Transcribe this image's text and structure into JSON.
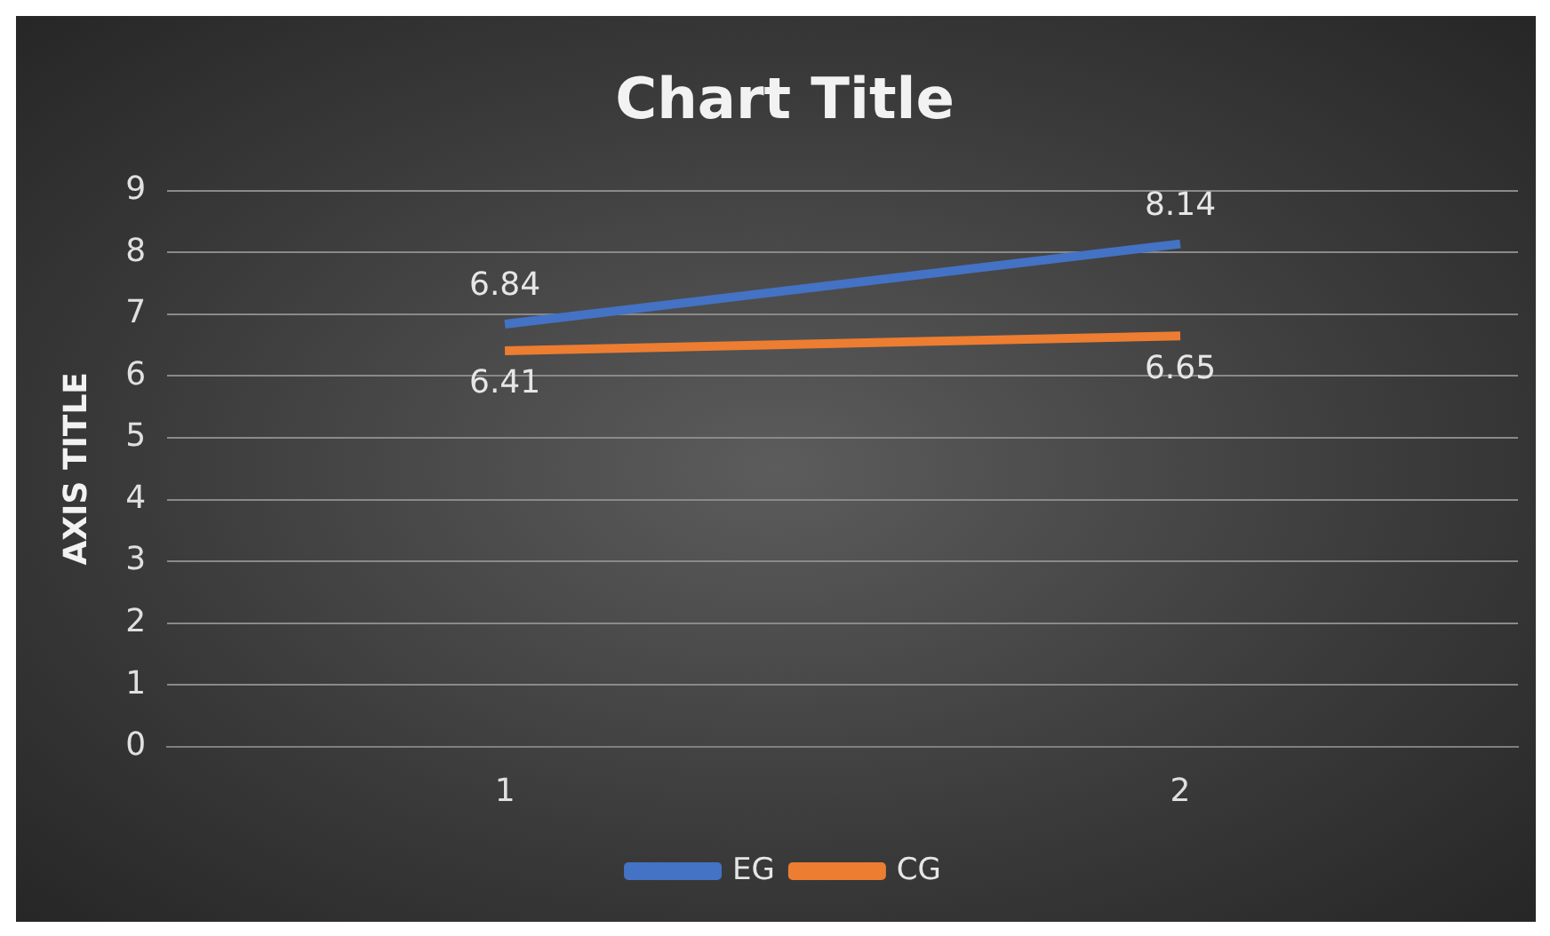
{
  "chart_data": {
    "type": "line",
    "title": "Chart Title",
    "ylabel": "AXIS TITLE",
    "categories": [
      "1",
      "2"
    ],
    "series": [
      {
        "name": "EG",
        "color": "#4472c4",
        "values": [
          6.84,
          8.14
        ]
      },
      {
        "name": "CG",
        "color": "#ed7d31",
        "values": [
          6.41,
          6.65
        ]
      }
    ],
    "ylim": [
      0,
      9
    ],
    "yticks": [
      0,
      1,
      2,
      3,
      4,
      5,
      6,
      7,
      8,
      9
    ],
    "grid": "y",
    "legend": "bottom",
    "data_labels": true,
    "marker": "none",
    "line_style": "solid"
  }
}
